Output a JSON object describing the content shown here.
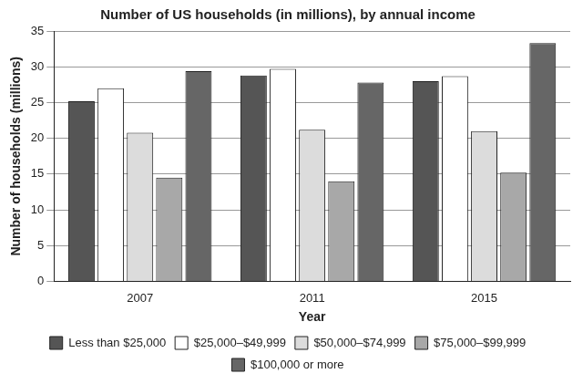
{
  "chart_data": {
    "type": "bar",
    "title": "Number of US households (in millions), by annual income",
    "x_label": "Year",
    "y_label": "Number of households (millions)",
    "categories": [
      "2007",
      "2011",
      "2015"
    ],
    "series": [
      {
        "name": "Less than $25,000",
        "color": "#555555",
        "values": [
          25.2,
          28.8,
          28.0
        ]
      },
      {
        "name": "$25,000–$49,999",
        "color": "#ffffff",
        "values": [
          27.0,
          29.7,
          28.7
        ]
      },
      {
        "name": "$50,000–$74,999",
        "color": "#dcdcdc",
        "values": [
          20.8,
          21.2,
          21.0
        ]
      },
      {
        "name": "$75,000–$99,999",
        "color": "#a8a8a8",
        "values": [
          14.5,
          14.0,
          15.2
        ]
      },
      {
        "name": "$100,000 or more",
        "color": "#666666",
        "values": [
          29.4,
          27.8,
          33.3
        ]
      }
    ],
    "ylim": [
      0,
      35
    ],
    "yticks": [
      0,
      5,
      10,
      15,
      20,
      25,
      30,
      35
    ],
    "grid": true,
    "legend": "bottom"
  }
}
